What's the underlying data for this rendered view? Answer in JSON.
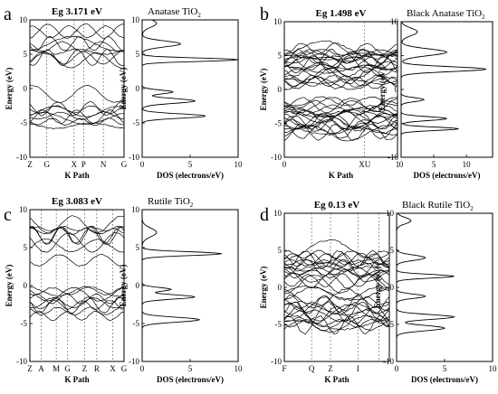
{
  "panels": [
    {
      "letter": "a",
      "band_title": "Eg 3.171 eV",
      "dos_title": "Anatase TiO",
      "dos_title_sub": "2",
      "band_xlabel": "K Path",
      "band_ylabel": "Energy (eV)",
      "dos_xlabel": "DOS (electrons/eV)",
      "dos_ylabel": "Energy (eV)",
      "band_xticks": [
        "Z",
        "G",
        "X",
        "P",
        "N",
        "G"
      ],
      "band_yticks": [
        "10",
        "5",
        "0",
        "-5",
        "-10"
      ],
      "dos_yticks": [
        "10",
        "5",
        "0",
        "-5",
        "-10"
      ],
      "dos_xticks": [
        "0",
        "5",
        "10"
      ]
    },
    {
      "letter": "b",
      "band_title": "Eg 1.498 eV",
      "dos_title": "Black Anatase TiO",
      "dos_title_sub": "2",
      "band_xlabel": "K Path",
      "band_ylabel": "Energy (eV)",
      "dos_xlabel": "DOS (electrons/eV)",
      "dos_ylabel": "Energy (eV)",
      "band_xticks": [
        "0",
        "XU",
        "1"
      ],
      "band_yticks": [
        "10",
        "5",
        "0",
        "-5",
        "-10"
      ],
      "dos_yticks": [
        "10",
        "5",
        "0",
        "-5",
        "-10"
      ],
      "dos_xticks": [
        "0",
        "5",
        "10"
      ]
    },
    {
      "letter": "c",
      "band_title": "Eg 3.083 eV",
      "dos_title": "Rutile TiO",
      "dos_title_sub": "2",
      "band_xlabel": "K Path",
      "band_ylabel": "Energy (eV)",
      "dos_xlabel": "DOS (electrons/eV)",
      "dos_ylabel": "Energy (eV)",
      "band_xticks": [
        "Z",
        "A",
        "M",
        "G",
        "Z",
        "R",
        "X",
        "G"
      ],
      "band_yticks": [
        "10",
        "5",
        "0",
        "-5",
        "-10"
      ],
      "dos_yticks": [
        "10",
        "5",
        "0",
        "-5",
        "-10"
      ],
      "dos_xticks": [
        "0",
        "5",
        "10"
      ]
    },
    {
      "letter": "d",
      "band_title": "Eg 0.13 eV",
      "dos_title": "Black Rutile TiO",
      "dos_title_sub": "2",
      "band_xlabel": "K Path",
      "band_ylabel": "Energy (eV)",
      "dos_xlabel": "DOS (electrons/eV)",
      "dos_ylabel": "Energy (eV)",
      "band_xticks": [
        "F",
        "Q",
        "Z",
        "I"
      ],
      "band_yticks": [
        "10",
        "5",
        "0",
        "-5",
        "-10"
      ],
      "dos_yticks": [
        "10",
        "5",
        "0",
        "-5",
        "-10"
      ],
      "dos_xticks": [
        "0",
        "5",
        "10"
      ]
    }
  ],
  "chart_data": [
    {
      "type": "line",
      "panel": "a",
      "plot": "band structure",
      "title": "Eg 3.171 eV",
      "xlabel": "K Path",
      "ylabel": "Energy (eV)",
      "ylim": [
        -10,
        10
      ],
      "band_gap_eV": 3.171,
      "x_ticks": [
        "Z",
        "G",
        "X",
        "P",
        "N",
        "G"
      ]
    },
    {
      "type": "line",
      "panel": "a",
      "plot": "density of states",
      "title": "Anatase TiO2",
      "xlabel": "DOS (electrons/eV)",
      "ylabel": "Energy (eV)",
      "xlim": [
        0,
        10
      ],
      "ylim": [
        -10,
        10
      ],
      "peaks": [
        {
          "energy": 9.5,
          "dos": 1.5
        },
        {
          "energy": 6.5,
          "dos": 4.0
        },
        {
          "energy": 4.2,
          "dos": 10.0
        },
        {
          "energy": -0.5,
          "dos": 3.2
        },
        {
          "energy": -1.8,
          "dos": 5.5
        },
        {
          "energy": -4.0,
          "dos": 6.6
        }
      ]
    },
    {
      "type": "line",
      "panel": "b",
      "plot": "band structure",
      "title": "Eg 1.498 eV",
      "xlabel": "K Path",
      "ylabel": "Energy (eV)",
      "ylim": [
        -10,
        10
      ],
      "xlim": [
        0,
        1
      ],
      "band_gap_eV": 1.498,
      "x_ticks": [
        "0",
        "XU",
        "1"
      ]
    },
    {
      "type": "line",
      "panel": "b",
      "plot": "density of states",
      "title": "Black Anatase TiO2",
      "xlabel": "DOS (electrons/eV)",
      "ylabel": "Energy (eV)",
      "xlim": [
        0,
        14
      ],
      "ylim": [
        -10,
        10
      ],
      "peaks": [
        {
          "energy": 8.5,
          "dos": 2.5
        },
        {
          "energy": 5.5,
          "dos": 7.0
        },
        {
          "energy": 3.0,
          "dos": 13.0
        },
        {
          "energy": -1.5,
          "dos": 3.5
        },
        {
          "energy": -4.3,
          "dos": 7.0
        },
        {
          "energy": -5.8,
          "dos": 8.8
        }
      ]
    },
    {
      "type": "line",
      "panel": "c",
      "plot": "band structure",
      "title": "Eg 3.083 eV",
      "xlabel": "K Path",
      "ylabel": "Energy (eV)",
      "ylim": [
        -10,
        10
      ],
      "band_gap_eV": 3.083,
      "x_ticks": [
        "Z",
        "A",
        "M",
        "G",
        "Z",
        "R",
        "X",
        "G"
      ]
    },
    {
      "type": "line",
      "panel": "c",
      "plot": "density of states",
      "title": "Rutile TiO2",
      "xlabel": "DOS (electrons/eV)",
      "ylabel": "Energy (eV)",
      "xlim": [
        0,
        10
      ],
      "ylim": [
        -10,
        10
      ],
      "peaks": [
        {
          "energy": 7.0,
          "dos": 1.5
        },
        {
          "energy": 4.2,
          "dos": 8.3
        },
        {
          "energy": -0.5,
          "dos": 3.0
        },
        {
          "energy": -1.5,
          "dos": 5.5
        },
        {
          "energy": -4.5,
          "dos": 6.0
        }
      ]
    },
    {
      "type": "line",
      "panel": "d",
      "plot": "band structure",
      "title": "Eg 0.13 eV",
      "xlabel": "K Path",
      "ylabel": "Energy (eV)",
      "ylim": [
        -10,
        10
      ],
      "band_gap_eV": 0.13,
      "x_ticks": [
        "F",
        "Q",
        "Z",
        "I"
      ]
    },
    {
      "type": "line",
      "panel": "d",
      "plot": "density of states",
      "title": "Black Rutile TiO2",
      "xlabel": "DOS (electrons/eV)",
      "ylabel": "Energy (eV)",
      "xlim": [
        0,
        10
      ],
      "ylim": [
        -10,
        10
      ],
      "peaks": [
        {
          "energy": 9.0,
          "dos": 1.5
        },
        {
          "energy": 4.0,
          "dos": 3.0
        },
        {
          "energy": 1.5,
          "dos": 6.0
        },
        {
          "energy": -1.2,
          "dos": 3.0
        },
        {
          "energy": -4.0,
          "dos": 6.0
        },
        {
          "energy": -5.5,
          "dos": 5.0
        }
      ]
    }
  ]
}
